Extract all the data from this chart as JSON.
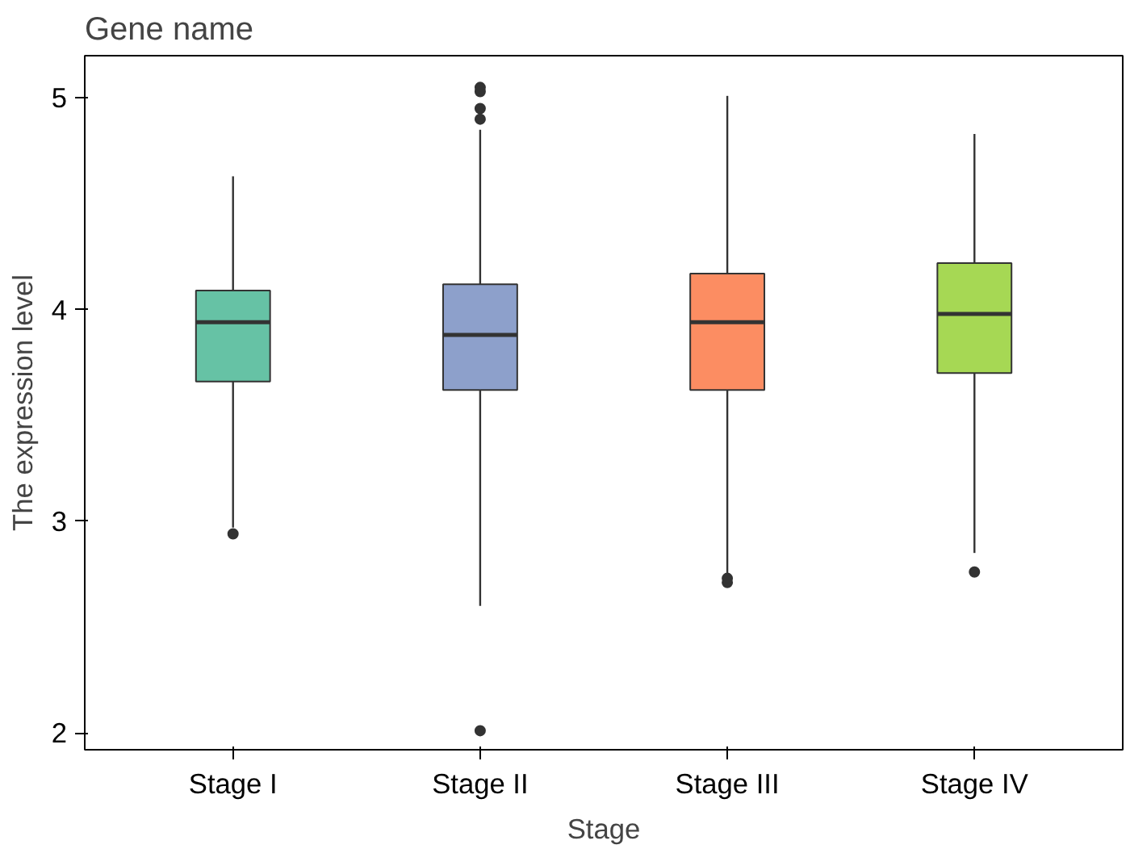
{
  "chart_data": {
    "type": "box",
    "title": "Gene name",
    "xlabel": "Stage",
    "ylabel": "The expression level",
    "categories": [
      "Stage I",
      "Stage II",
      "Stage III",
      "Stage IV"
    ],
    "colors": [
      "#66c2a5",
      "#8da0cb",
      "#fc8d62",
      "#a6d854"
    ],
    "boxes": [
      {
        "low": 2.97,
        "q1": 3.66,
        "median": 3.94,
        "q3": 4.09,
        "high": 4.63,
        "outliers": [
          2.94
        ]
      },
      {
        "low": 2.6,
        "q1": 3.62,
        "median": 3.88,
        "q3": 4.12,
        "high": 4.85,
        "outliers": [
          2.01,
          4.9,
          4.95,
          5.03,
          5.05
        ]
      },
      {
        "low": 2.75,
        "q1": 3.62,
        "median": 3.94,
        "q3": 4.17,
        "high": 5.01,
        "outliers": [
          2.71,
          2.73
        ]
      },
      {
        "low": 2.85,
        "q1": 3.7,
        "median": 3.98,
        "q3": 4.22,
        "high": 4.83,
        "outliers": [
          2.76
        ]
      }
    ],
    "ylim": [
      1.92,
      5.2
    ],
    "yticks": [
      2,
      3,
      4,
      5
    ],
    "grid": false
  }
}
